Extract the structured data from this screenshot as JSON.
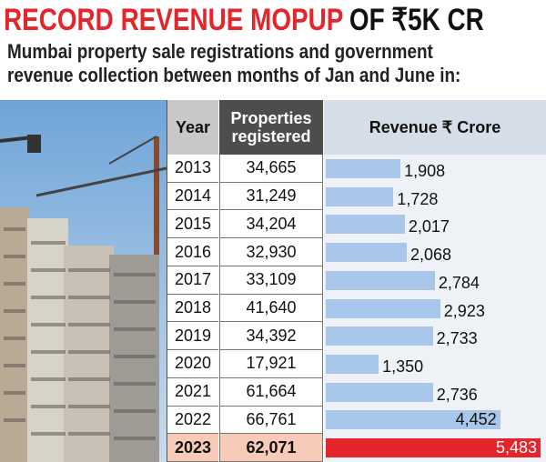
{
  "header": {
    "title": [
      "RECORD REVENUE MOPUP",
      "OF ₹5K CR"
    ],
    "subtitle": "Mumbai property sale registrations and government revenue collection between months of Jan and June in:"
  },
  "chart_data": {
    "type": "bar",
    "orientation": "horizontal",
    "columns": [
      "Year",
      "Properties registered",
      "Revenue ₹ Crore"
    ],
    "categories": [
      "2013",
      "2014",
      "2015",
      "2016",
      "2017",
      "2018",
      "2019",
      "2020",
      "2021",
      "2022",
      "2023"
    ],
    "properties": [
      "34,665",
      "31,249",
      "34,204",
      "32,930",
      "33,109",
      "41,640",
      "34,392",
      "17,921",
      "61,664",
      "66,761",
      "62,071"
    ],
    "values": [
      1908,
      1728,
      2017,
      2068,
      2784,
      2923,
      2733,
      1350,
      2736,
      4452,
      5483
    ],
    "value_labels": [
      "1,908",
      "1,728",
      "2,017",
      "2,068",
      "2,784",
      "2,923",
      "2,733",
      "1,350",
      "2,736",
      "4,452",
      "5,483"
    ],
    "color": "#a8c5ea",
    "highlight": "2023",
    "highlight_color": "#e4262c",
    "highlight_row_color": "#f7cbb8"
  }
}
